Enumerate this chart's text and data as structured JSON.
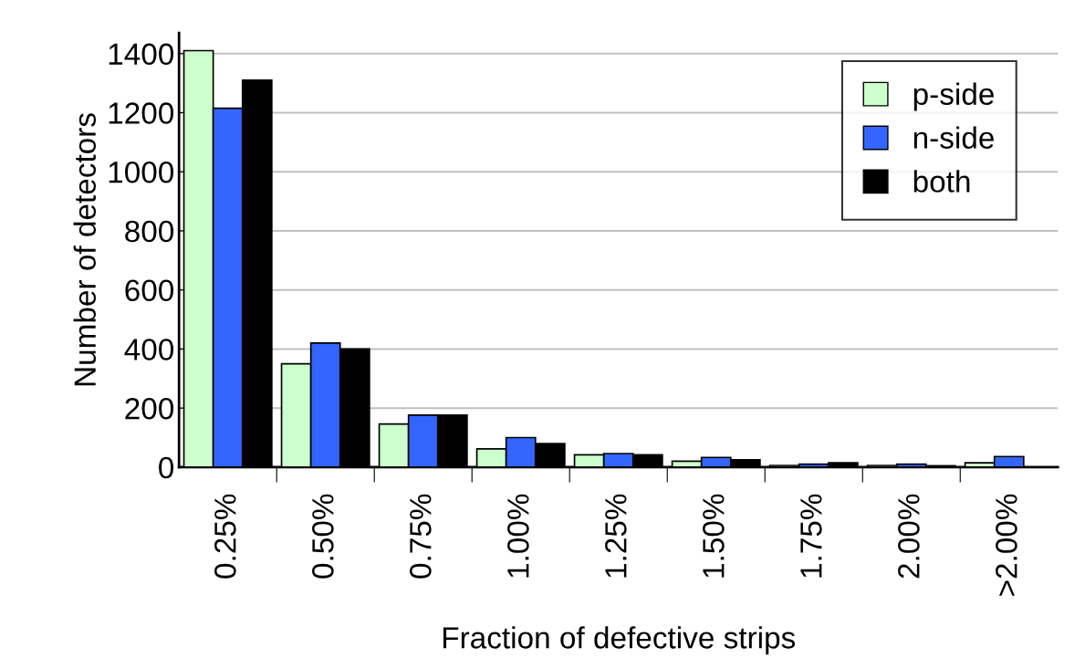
{
  "chart_data": {
    "type": "bar",
    "xlabel": "Fraction of defective strips",
    "ylabel": "Number of detectors",
    "categories": [
      "0.25%",
      "0.50%",
      "0.75%",
      "1.00%",
      "1.25%",
      "1.50%",
      "1.75%",
      "2.00%",
      ">2.00%"
    ],
    "series": [
      {
        "name": "p-side",
        "color": "#ccffcc",
        "values": [
          1410,
          350,
          146,
          62,
          42,
          20,
          6,
          6,
          15
        ]
      },
      {
        "name": "n-side",
        "color": "#3366ff",
        "values": [
          1215,
          420,
          176,
          100,
          46,
          33,
          10,
          10,
          36
        ]
      },
      {
        "name": "both",
        "color": "#000000",
        "values": [
          1310,
          400,
          176,
          80,
          42,
          25,
          15,
          5,
          0
        ]
      }
    ],
    "ylim": [
      0,
      1470
    ],
    "yticks": [
      0,
      200,
      400,
      600,
      800,
      1000,
      1200,
      1400
    ],
    "grid": "y",
    "legend": "top right"
  }
}
